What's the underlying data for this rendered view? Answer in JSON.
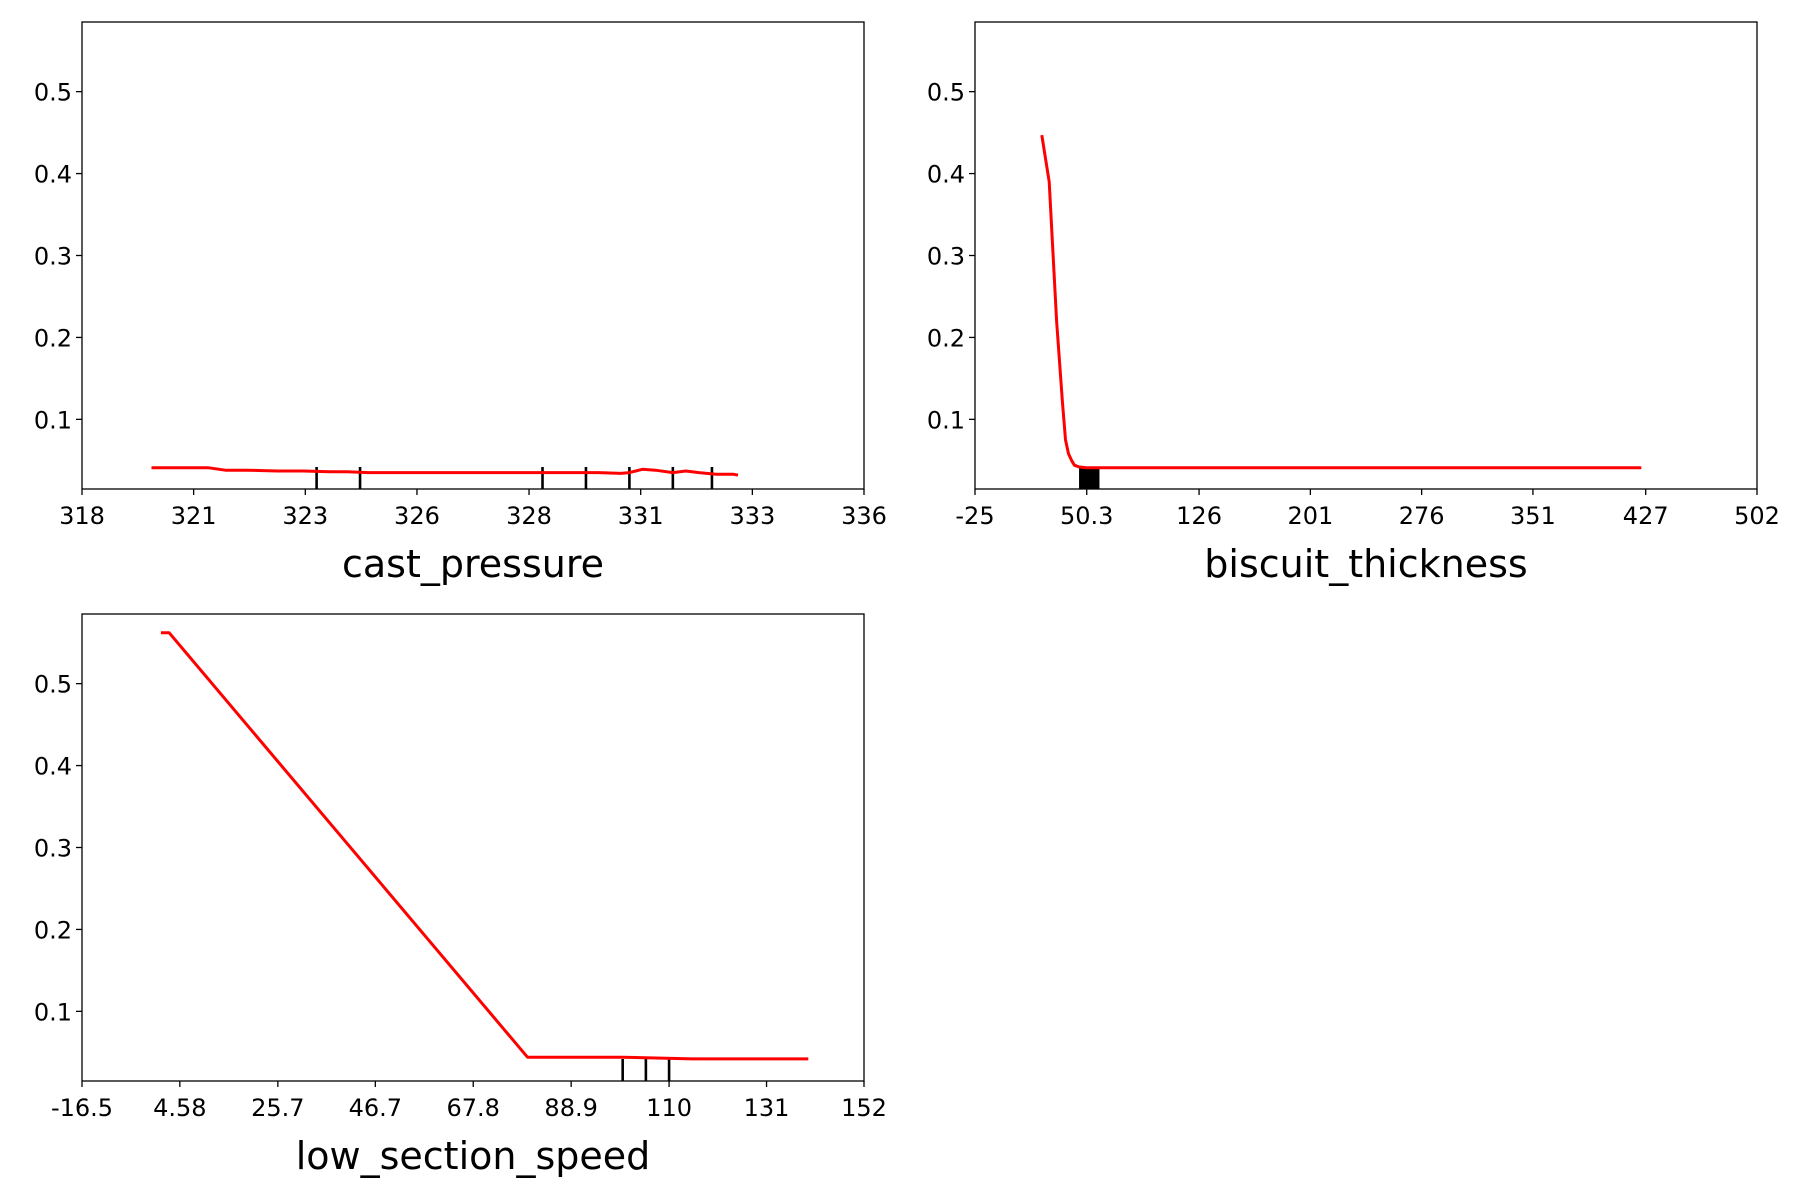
{
  "figure": {
    "background": "#ffffff",
    "line_color": "#ff0000",
    "rug_color": "#000000",
    "frame_color": "#000000"
  },
  "chart_data": [
    {
      "type": "line",
      "title": "",
      "xlabel": "cast_pressure",
      "ylabel": "",
      "xlim": [
        318,
        336
      ],
      "ylim": [
        0.015,
        0.585
      ],
      "x_ticks": [
        318,
        320.57,
        323.14,
        325.71,
        328.29,
        330.86,
        333.43,
        336
      ],
      "x_tick_labels": [
        "318",
        "321",
        "323",
        "326",
        "328",
        "331",
        "333",
        "336"
      ],
      "y_ticks": [
        0.1,
        0.2,
        0.3,
        0.4,
        0.5
      ],
      "y_tick_labels": [
        "0.1",
        "0.2",
        "0.3",
        "0.4",
        "0.5"
      ],
      "grid": false,
      "series": [
        {
          "x": [
            319.6,
            320.3,
            320.9,
            321.3,
            321.8,
            322.5,
            323.1,
            323.7,
            324.1,
            324.6,
            325.2,
            325.8,
            326.4,
            327.2,
            327.8,
            328.6,
            329.2,
            329.9,
            330.4,
            330.6,
            330.9,
            331.2,
            331.6,
            331.9,
            332.2,
            332.6,
            333.0,
            333.1
          ],
          "y": [
            0.041,
            0.041,
            0.041,
            0.038,
            0.038,
            0.037,
            0.037,
            0.036,
            0.036,
            0.035,
            0.035,
            0.035,
            0.035,
            0.035,
            0.035,
            0.035,
            0.035,
            0.035,
            0.034,
            0.035,
            0.039,
            0.038,
            0.035,
            0.037,
            0.035,
            0.033,
            0.033,
            0.032
          ]
        }
      ],
      "rug": [
        323.4,
        324.4,
        328.6,
        329.6,
        330.6,
        331.6,
        332.5
      ]
    },
    {
      "type": "line",
      "title": "",
      "xlabel": "biscuit_thickness",
      "ylabel": "",
      "xlim": [
        -25,
        502
      ],
      "ylim": [
        0.015,
        0.585
      ],
      "x_ticks": [
        -25,
        50.3,
        126,
        201,
        276,
        351,
        427,
        502
      ],
      "x_tick_labels": [
        "-25",
        "50.3",
        "126",
        "201",
        "276",
        "351",
        "427",
        "502"
      ],
      "y_ticks": [
        0.1,
        0.2,
        0.3,
        0.4,
        0.5
      ],
      "y_tick_labels": [
        "0.1",
        "0.2",
        "0.3",
        "0.4",
        "0.5"
      ],
      "grid": false,
      "series": [
        {
          "x": [
            20,
            25,
            30,
            34,
            36,
            38,
            40,
            42,
            45,
            50,
            60,
            80,
            120,
            200,
            300,
            400,
            424
          ],
          "y": [
            0.447,
            0.39,
            0.22,
            0.12,
            0.075,
            0.058,
            0.05,
            0.044,
            0.042,
            0.041,
            0.041,
            0.041,
            0.041,
            0.041,
            0.041,
            0.041,
            0.041
          ]
        }
      ],
      "rug": [
        46,
        47,
        48,
        49,
        50,
        51,
        52,
        53,
        54,
        55,
        56,
        57,
        58
      ]
    },
    {
      "type": "line",
      "title": "",
      "xlabel": "low_section_speed",
      "ylabel": "",
      "xlim": [
        -16.5,
        152
      ],
      "ylim": [
        0.015,
        0.585
      ],
      "x_ticks": [
        -16.5,
        4.58,
        25.7,
        46.7,
        67.8,
        88.9,
        110,
        131,
        152
      ],
      "x_tick_labels": [
        "-16.5",
        "4.58",
        "25.7",
        "46.7",
        "67.8",
        "88.9",
        "110",
        "131",
        "152"
      ],
      "y_ticks": [
        0.1,
        0.2,
        0.3,
        0.4,
        0.5
      ],
      "y_tick_labels": [
        "0.1",
        "0.2",
        "0.3",
        "0.4",
        "0.5"
      ],
      "grid": false,
      "series": [
        {
          "x": [
            0.5,
            2.3,
            79.5,
            100.0,
            115.0,
            140.0
          ],
          "y": [
            0.562,
            0.562,
            0.044,
            0.044,
            0.042,
            0.042
          ]
        }
      ],
      "rug": [
        100,
        105,
        110
      ]
    }
  ]
}
